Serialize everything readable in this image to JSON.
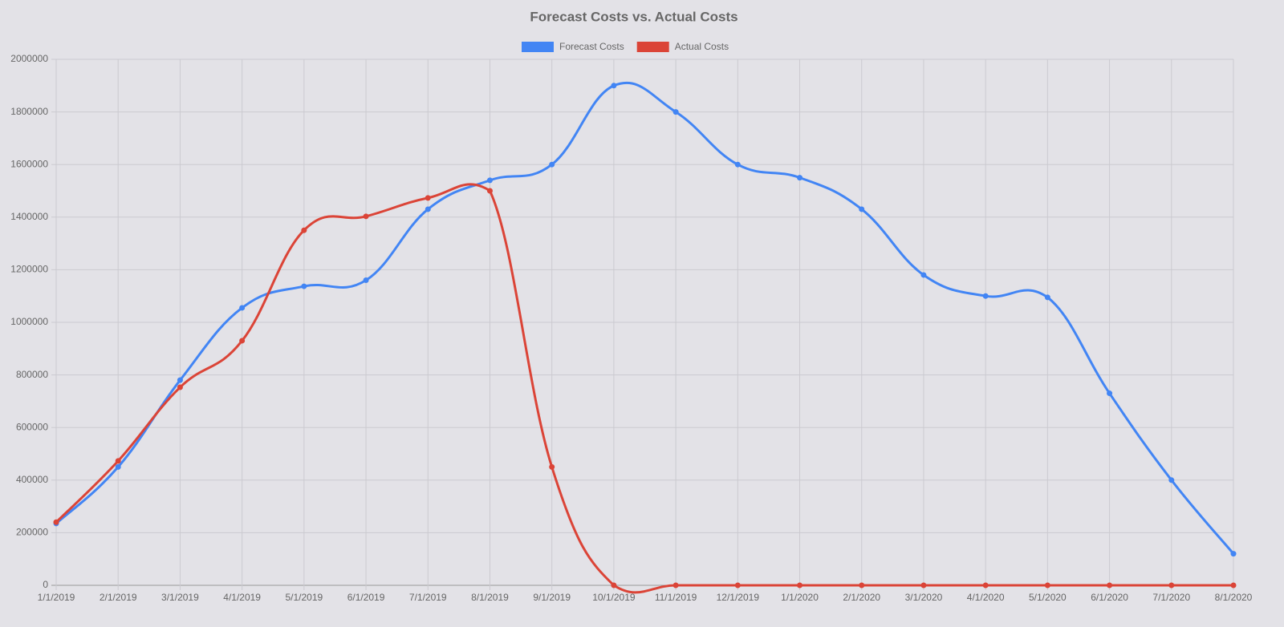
{
  "chart_data": {
    "type": "line",
    "title": "Forecast Costs vs. Actual Costs",
    "categories": [
      "1/1/2019",
      "2/1/2019",
      "3/1/2019",
      "4/1/2019",
      "5/1/2019",
      "6/1/2019",
      "7/1/2019",
      "8/1/2019",
      "9/1/2019",
      "10/1/2019",
      "11/1/2019",
      "12/1/2019",
      "1/1/2020",
      "2/1/2020",
      "3/1/2020",
      "4/1/2020",
      "5/1/2020",
      "6/1/2020",
      "7/1/2020",
      "8/1/2020"
    ],
    "series": [
      {
        "name": "Forecast Costs",
        "color": "#4285f4",
        "values": [
          235000,
          450000,
          780000,
          1055000,
          1137000,
          1160000,
          1430000,
          1540000,
          1600000,
          1900000,
          1800000,
          1600000,
          1550000,
          1430000,
          1180000,
          1100000,
          1095000,
          730000,
          400000,
          120000
        ]
      },
      {
        "name": "Actual Costs",
        "color": "#db4437",
        "values": [
          240000,
          473000,
          753000,
          930000,
          1350000,
          1403000,
          1473000,
          1500000,
          450000,
          0,
          0,
          0,
          0,
          0,
          0,
          0,
          0,
          0,
          0,
          0
        ]
      }
    ],
    "ylim": [
      0,
      2000000
    ],
    "yticks": [
      0,
      200000,
      400000,
      600000,
      800000,
      1000000,
      1200000,
      1400000,
      1600000,
      1800000,
      2000000
    ],
    "grid": true,
    "legend": "top"
  }
}
